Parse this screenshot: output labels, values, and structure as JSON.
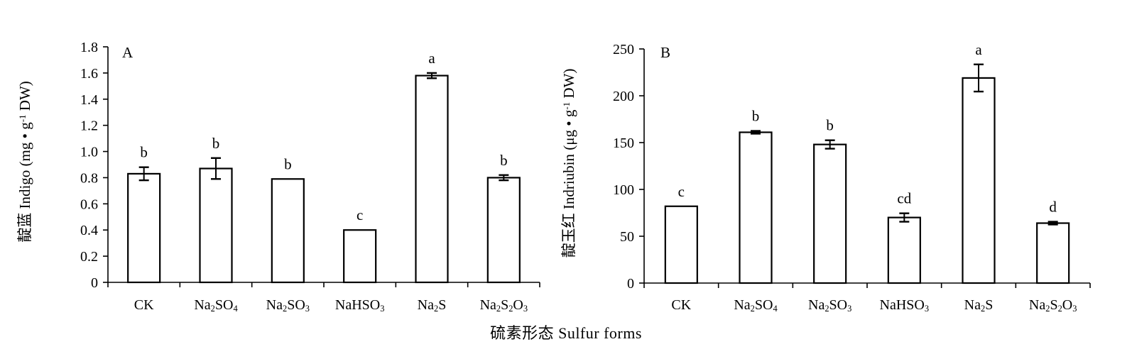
{
  "x_axis_title": "硫素形态 Sulfur forms",
  "chart_data": [
    {
      "type": "bar",
      "panel_label": "A",
      "ylabel": "靛蓝 Indigo (mg • g⁻¹ DW)",
      "xlabel": "",
      "ylim": [
        0,
        1.8
      ],
      "yticks": [
        "0",
        "0.2",
        "0.4",
        "0.6",
        "0.8",
        "1.0",
        "1.2",
        "1.4",
        "1.6",
        "1.8"
      ],
      "categories": [
        "CK",
        "Na₂SO₄",
        "Na₂SO₃",
        "NaHSO₃",
        "Na₂S",
        "Na₂S₂O₃"
      ],
      "values": [
        0.83,
        0.87,
        0.79,
        0.4,
        1.58,
        0.8
      ],
      "errors": [
        0.05,
        0.08,
        0,
        0,
        0.02,
        0.02
      ],
      "letters": [
        "b",
        "b",
        "b",
        "c",
        "a",
        "b"
      ]
    },
    {
      "type": "bar",
      "panel_label": "B",
      "ylabel": "靛玉红 Indriubin (μg • g⁻¹ DW)",
      "xlabel": "",
      "ylim": [
        0,
        250
      ],
      "yticks": [
        "0",
        "50",
        "100",
        "150",
        "200",
        "250"
      ],
      "categories": [
        "CK",
        "Na₂SO₄",
        "Na₂SO₃",
        "NaHSO₃",
        "Na₂S",
        "Na₂S₂O₃"
      ],
      "values": [
        82,
        161,
        148,
        70,
        219,
        64
      ],
      "errors": [
        0,
        1.5,
        4.5,
        4.5,
        14.5,
        1.5
      ],
      "letters": [
        "c",
        "b",
        "b",
        "cd",
        "a",
        "d"
      ]
    }
  ]
}
